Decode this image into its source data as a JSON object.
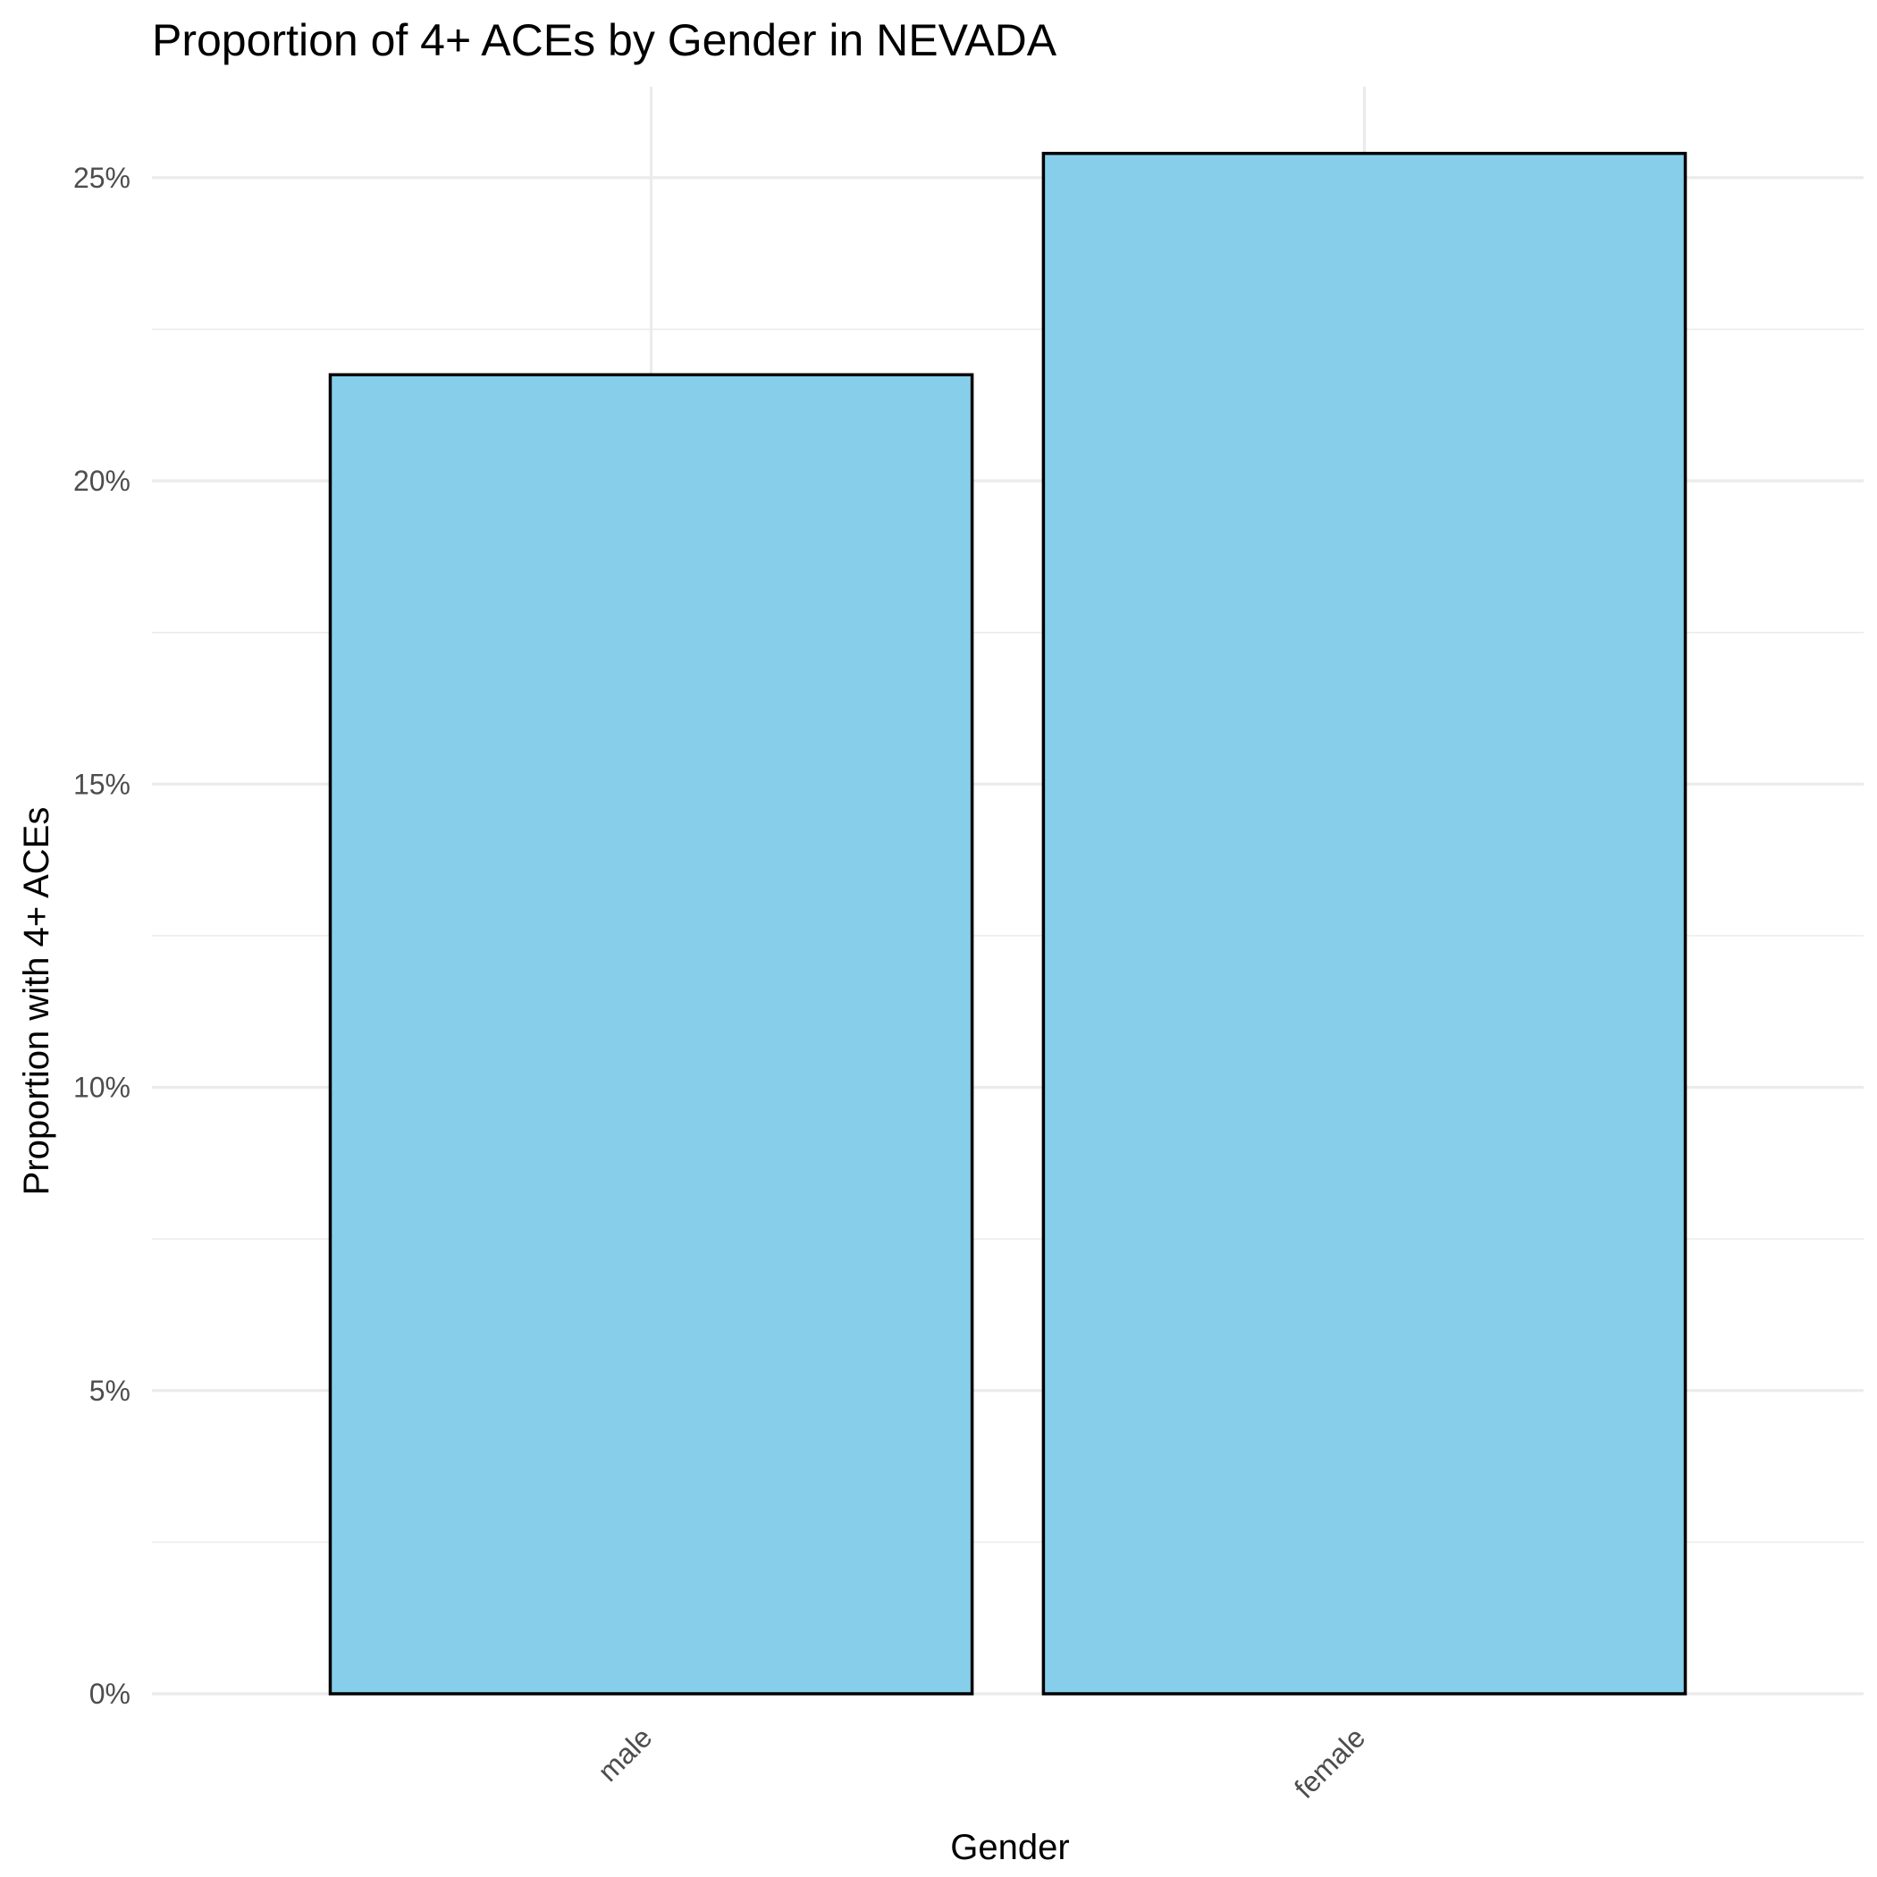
{
  "chart_data": {
    "type": "bar",
    "title": "Proportion of 4+ ACEs by Gender in NEVADA",
    "xlabel": "Gender",
    "ylabel": "Proportion with 4+ ACEs",
    "categories": [
      "male",
      "female"
    ],
    "values": [
      0.2175,
      0.254
    ],
    "ylim": [
      0,
      0.265
    ],
    "yticks": [
      0,
      0.05,
      0.1,
      0.15,
      0.2,
      0.25
    ],
    "ytick_labels": [
      "0%",
      "5%",
      "10%",
      "15%",
      "20%",
      "25%"
    ],
    "bar_color": "#87CEEB",
    "bar_outline_color": "#000000",
    "grid": true,
    "legend": "none"
  }
}
